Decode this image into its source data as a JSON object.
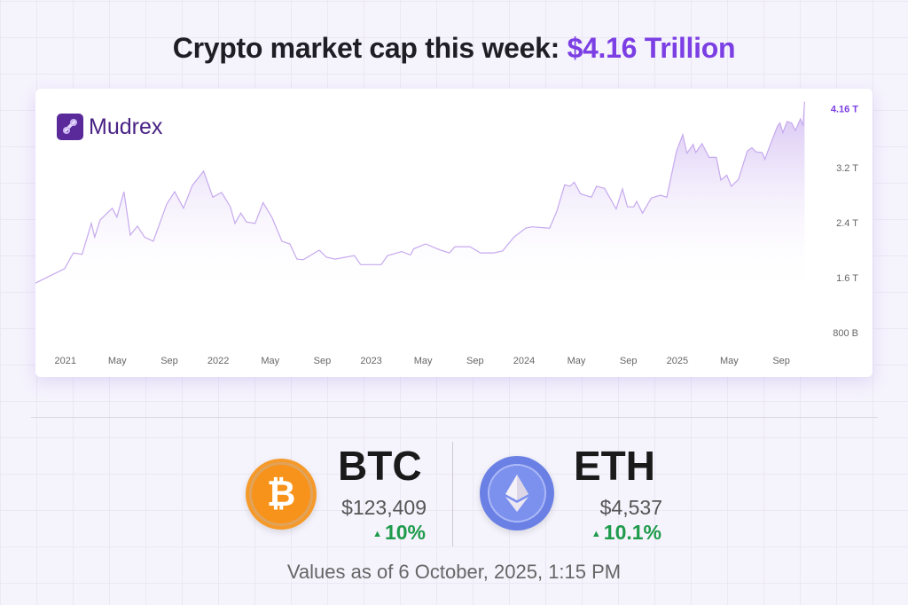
{
  "header": {
    "title_prefix": "Crypto market cap this week: ",
    "title_value": "$4.16 Trillion"
  },
  "brand": {
    "name": "Mudrex",
    "logo_icon": "mudrex-link-icon"
  },
  "colors": {
    "accent": "#7b3fe4",
    "line": "#c6a9ee",
    "positive": "#1e9b4b",
    "btc": "#f7931a",
    "eth": "#6a80e4"
  },
  "chart_data": {
    "type": "area",
    "title": "",
    "xlabel": "",
    "ylabel": "",
    "unit": "T",
    "grid": false,
    "y_ticks": [
      {
        "value": 0.8,
        "label": "800 B"
      },
      {
        "value": 1.6,
        "label": "1.6 T"
      },
      {
        "value": 2.4,
        "label": "2.4 T"
      },
      {
        "value": 3.2,
        "label": "3.2 T"
      }
    ],
    "last_value_label": "4.16 T",
    "x_ticks": [
      {
        "date": "2021-01-01",
        "label": "2021"
      },
      {
        "date": "2021-05-01",
        "label": "May"
      },
      {
        "date": "2021-09-01",
        "label": "Sep"
      },
      {
        "date": "2022-01-01",
        "label": "2022"
      },
      {
        "date": "2022-05-01",
        "label": "May"
      },
      {
        "date": "2022-09-01",
        "label": "Sep"
      },
      {
        "date": "2023-01-01",
        "label": "2023"
      },
      {
        "date": "2023-05-01",
        "label": "May"
      },
      {
        "date": "2023-09-01",
        "label": "Sep"
      },
      {
        "date": "2024-01-01",
        "label": "2024"
      },
      {
        "date": "2024-05-01",
        "label": "May"
      },
      {
        "date": "2024-09-01",
        "label": "Sep"
      },
      {
        "date": "2025-01-01",
        "label": "2025"
      },
      {
        "date": "2025-05-01",
        "label": "May"
      },
      {
        "date": "2025-09-01",
        "label": "Sep"
      }
    ],
    "points": [
      [
        "2020-09-25",
        1.52
      ],
      [
        "2020-12-04",
        1.73
      ],
      [
        "2020-12-25",
        1.96
      ],
      [
        "2021-01-15",
        1.94
      ],
      [
        "2021-02-06",
        2.39
      ],
      [
        "2021-02-14",
        2.19
      ],
      [
        "2021-02-27",
        2.44
      ],
      [
        "2021-03-28",
        2.61
      ],
      [
        "2021-04-08",
        2.48
      ],
      [
        "2021-04-25",
        2.85
      ],
      [
        "2021-05-10",
        2.22
      ],
      [
        "2021-05-27",
        2.35
      ],
      [
        "2021-06-13",
        2.19
      ],
      [
        "2021-07-04",
        2.13
      ],
      [
        "2021-08-05",
        2.67
      ],
      [
        "2021-08-24",
        2.85
      ],
      [
        "2021-09-14",
        2.61
      ],
      [
        "2021-10-05",
        2.94
      ],
      [
        "2021-11-01",
        3.15
      ],
      [
        "2021-11-23",
        2.77
      ],
      [
        "2021-12-14",
        2.84
      ],
      [
        "2022-01-04",
        2.63
      ],
      [
        "2022-01-15",
        2.39
      ],
      [
        "2022-01-29",
        2.54
      ],
      [
        "2022-02-11",
        2.41
      ],
      [
        "2022-03-04",
        2.39
      ],
      [
        "2022-03-23",
        2.69
      ],
      [
        "2022-04-13",
        2.48
      ],
      [
        "2022-05-07",
        2.13
      ],
      [
        "2022-05-26",
        2.09
      ],
      [
        "2022-06-12",
        1.87
      ],
      [
        "2022-06-27",
        1.86
      ],
      [
        "2022-08-04",
        2.0
      ],
      [
        "2022-08-21",
        1.9
      ],
      [
        "2022-09-11",
        1.87
      ],
      [
        "2022-10-27",
        1.92
      ],
      [
        "2022-11-11",
        1.79
      ],
      [
        "2022-12-30",
        1.79
      ],
      [
        "2023-01-14",
        1.92
      ],
      [
        "2023-02-17",
        1.98
      ],
      [
        "2023-03-10",
        1.93
      ],
      [
        "2023-03-18",
        2.02
      ],
      [
        "2023-04-15",
        2.09
      ],
      [
        "2023-05-21",
        2.0
      ],
      [
        "2023-06-11",
        1.96
      ],
      [
        "2023-06-24",
        2.05
      ],
      [
        "2023-07-30",
        2.05
      ],
      [
        "2023-08-13",
        2.0
      ],
      [
        "2023-08-24",
        1.96
      ],
      [
        "2023-09-25",
        1.96
      ],
      [
        "2023-10-16",
        1.99
      ],
      [
        "2023-11-12",
        2.19
      ],
      [
        "2023-12-10",
        2.32
      ],
      [
        "2023-12-25",
        2.34
      ],
      [
        "2024-02-05",
        2.32
      ],
      [
        "2024-02-22",
        2.56
      ],
      [
        "2024-03-12",
        2.95
      ],
      [
        "2024-03-25",
        2.93
      ],
      [
        "2024-04-04",
        2.99
      ],
      [
        "2024-04-19",
        2.82
      ],
      [
        "2024-05-15",
        2.77
      ],
      [
        "2024-05-27",
        2.93
      ],
      [
        "2024-06-15",
        2.9
      ],
      [
        "2024-07-13",
        2.6
      ],
      [
        "2024-07-28",
        2.89
      ],
      [
        "2024-08-09",
        2.63
      ],
      [
        "2024-08-24",
        2.63
      ],
      [
        "2024-08-31",
        2.71
      ],
      [
        "2024-09-14",
        2.54
      ],
      [
        "2024-10-05",
        2.76
      ],
      [
        "2024-10-27",
        2.8
      ],
      [
        "2024-11-11",
        2.77
      ],
      [
        "2024-12-04",
        3.44
      ],
      [
        "2024-12-19",
        3.68
      ],
      [
        "2024-12-29",
        3.41
      ],
      [
        "2025-01-13",
        3.54
      ],
      [
        "2025-01-19",
        3.42
      ],
      [
        "2025-02-03",
        3.55
      ],
      [
        "2025-02-20",
        3.35
      ],
      [
        "2025-03-09",
        3.35
      ],
      [
        "2025-03-20",
        3.02
      ],
      [
        "2025-04-03",
        3.09
      ],
      [
        "2025-04-14",
        2.93
      ],
      [
        "2025-05-01",
        3.03
      ],
      [
        "2025-05-22",
        3.44
      ],
      [
        "2025-06-02",
        3.49
      ],
      [
        "2025-06-12",
        3.43
      ],
      [
        "2025-06-27",
        3.42
      ],
      [
        "2025-07-03",
        3.32
      ],
      [
        "2025-07-12",
        3.47
      ],
      [
        "2025-08-02",
        3.8
      ],
      [
        "2025-08-08",
        3.85
      ],
      [
        "2025-08-15",
        3.71
      ],
      [
        "2025-08-25",
        3.87
      ],
      [
        "2025-09-05",
        3.85
      ],
      [
        "2025-09-14",
        3.74
      ],
      [
        "2025-09-26",
        3.91
      ],
      [
        "2025-10-02",
        3.81
      ],
      [
        "2025-10-06",
        4.16
      ]
    ]
  },
  "coins": [
    {
      "symbol": "BTC",
      "icon": "bitcoin-icon",
      "icon_glyph": "₿",
      "price": "$123,409",
      "change": "10%",
      "direction": "up"
    },
    {
      "symbol": "ETH",
      "icon": "ethereum-icon",
      "price": "$4,537",
      "change": "10.1%",
      "direction": "up"
    }
  ],
  "footer": {
    "timestamp": "Values as of 6 October, 2025, 1:15 PM"
  }
}
